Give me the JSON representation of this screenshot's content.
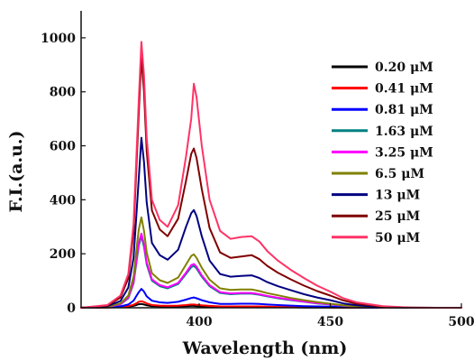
{
  "chart_data": {
    "type": "line",
    "title": "",
    "xlabel": "Wavelength (nm)",
    "ylabel": "F.I.(a.u.)",
    "xlim": [
      355,
      500
    ],
    "ylim": [
      0,
      1100
    ],
    "xticks": [
      400,
      450,
      500
    ],
    "yticks": [
      0,
      200,
      400,
      600,
      800,
      1000
    ],
    "xtick_labels": [
      "400",
      "450",
      "500"
    ],
    "ytick_labels": [
      "0",
      "200",
      "400",
      "600",
      "800",
      "1000"
    ],
    "legend_position": "right",
    "grid": false,
    "x": [
      355,
      365,
      370,
      373,
      375,
      376,
      377,
      378,
      379,
      380,
      382,
      385,
      388,
      392,
      395,
      397,
      398,
      399,
      401,
      404,
      408,
      412,
      416,
      420,
      423,
      426,
      430,
      435,
      440,
      445,
      450,
      455,
      460,
      470,
      480,
      490,
      500
    ],
    "series": [
      {
        "name": "0.20 μM",
        "color": "#000000",
        "values": [
          0,
          1,
          2,
          4,
          7,
          10,
          13,
          14,
          12,
          9,
          6,
          5,
          4,
          5,
          6,
          7,
          7,
          6,
          5,
          4,
          3,
          3,
          3,
          3,
          3,
          2,
          2,
          2,
          1,
          1,
          1,
          0,
          0,
          0,
          0,
          0,
          0
        ]
      },
      {
        "name": "0.41 μM",
        "color": "#ff0000",
        "values": [
          0,
          1,
          3,
          6,
          11,
          16,
          22,
          24,
          21,
          16,
          10,
          8,
          7,
          8,
          10,
          12,
          12,
          11,
          9,
          7,
          5,
          5,
          5,
          5,
          5,
          4,
          3,
          3,
          2,
          2,
          1,
          1,
          0,
          0,
          0,
          0,
          0
        ]
      },
      {
        "name": "0.81 μM",
        "color": "#0000ff",
        "values": [
          0,
          2,
          5,
          12,
          26,
          42,
          58,
          70,
          60,
          42,
          26,
          20,
          18,
          22,
          30,
          36,
          38,
          35,
          28,
          20,
          14,
          14,
          15,
          15,
          14,
          12,
          10,
          8,
          6,
          5,
          4,
          2,
          1,
          0,
          0,
          0,
          0
        ]
      },
      {
        "name": "1.63 μM",
        "color": "#008080",
        "values": [
          0,
          3,
          12,
          35,
          90,
          160,
          230,
          265,
          225,
          160,
          100,
          80,
          72,
          88,
          125,
          150,
          155,
          145,
          115,
          80,
          55,
          50,
          52,
          52,
          48,
          42,
          35,
          28,
          22,
          16,
          12,
          7,
          4,
          1,
          0,
          0,
          0
        ]
      },
      {
        "name": "3.25 μM",
        "color": "#ff00ff",
        "values": [
          0,
          3,
          13,
          38,
          95,
          168,
          240,
          275,
          235,
          168,
          105,
          84,
          76,
          92,
          130,
          158,
          162,
          152,
          120,
          84,
          58,
          53,
          55,
          55,
          50,
          44,
          37,
          30,
          23,
          17,
          13,
          8,
          4,
          1,
          0,
          0,
          0
        ]
      },
      {
        "name": "6.5 μM",
        "color": "#808000",
        "values": [
          0,
          4,
          16,
          45,
          115,
          205,
          290,
          335,
          285,
          205,
          128,
          102,
          92,
          112,
          160,
          192,
          198,
          185,
          148,
          104,
          72,
          66,
          68,
          68,
          62,
          54,
          46,
          36,
          28,
          21,
          15,
          9,
          5,
          1,
          0,
          0,
          0
        ]
      },
      {
        "name": "13 μM",
        "color": "#000080",
        "values": [
          0,
          6,
          25,
          75,
          185,
          330,
          480,
          630,
          540,
          390,
          240,
          195,
          178,
          215,
          300,
          350,
          362,
          340,
          265,
          175,
          125,
          115,
          118,
          120,
          110,
          95,
          80,
          65,
          50,
          38,
          28,
          16,
          9,
          2,
          0,
          0,
          0
        ]
      },
      {
        "name": "25 μM",
        "color": "#800000",
        "values": [
          0,
          8,
          38,
          110,
          280,
          500,
          720,
          930,
          800,
          580,
          360,
          290,
          265,
          330,
          470,
          570,
          590,
          555,
          440,
          295,
          205,
          185,
          190,
          195,
          180,
          155,
          130,
          105,
          82,
          62,
          45,
          27,
          15,
          4,
          1,
          0,
          0
        ]
      },
      {
        "name": "50 μM",
        "color": "#ff3366",
        "values": [
          0,
          10,
          45,
          125,
          310,
          540,
          770,
          985,
          860,
          630,
          400,
          325,
          300,
          380,
          560,
          700,
          830,
          780,
          600,
          400,
          285,
          255,
          262,
          265,
          245,
          210,
          175,
          140,
          110,
          82,
          60,
          35,
          20,
          6,
          1,
          0,
          0
        ]
      }
    ]
  }
}
